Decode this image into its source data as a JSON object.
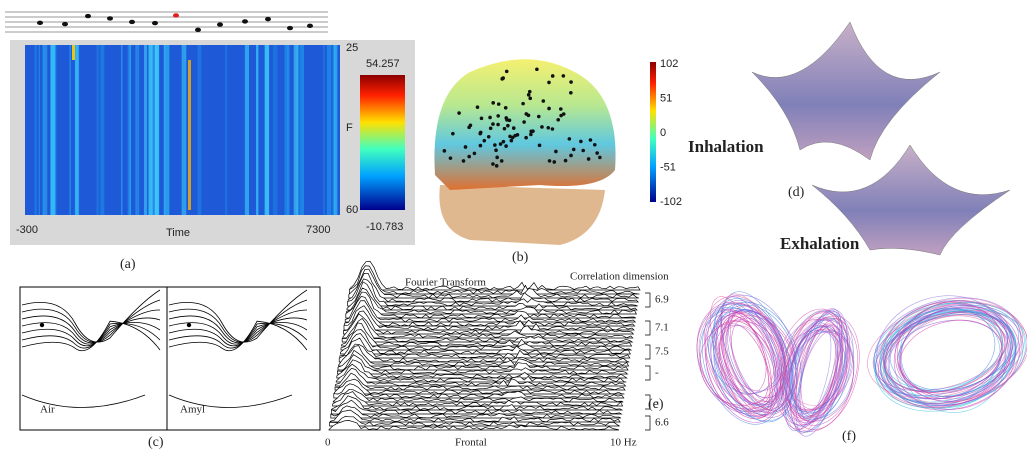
{
  "panel_a": {
    "x_start": "-300",
    "x_label": "Time",
    "x_end": "7300",
    "y_top": "25",
    "y_label": "F",
    "y_bottom": "60",
    "color_max": "54.257",
    "color_min": "-10.783",
    "caption": "(a)"
  },
  "panel_b": {
    "colorbar": [
      "102",
      "51",
      "0",
      "-51",
      "-102"
    ],
    "caption": "(b)"
  },
  "panel_c": {
    "left": "Air",
    "right": "Amyl",
    "caption": "(c)"
  },
  "panel_d": {
    "top": "Inhalation",
    "bottom": "Exhalation",
    "caption": "(d)"
  },
  "panel_e": {
    "left_title": "Fourier Transform",
    "right_title": "Correlation dimension",
    "dimensions": [
      "6.9",
      "7.1",
      "7.5",
      "-",
      "-",
      "6.6"
    ],
    "x_start": "0",
    "x_label": "Frontal",
    "x_end": "10 Hz",
    "caption": "(e)"
  },
  "panel_f": {
    "caption": "(f)"
  }
}
